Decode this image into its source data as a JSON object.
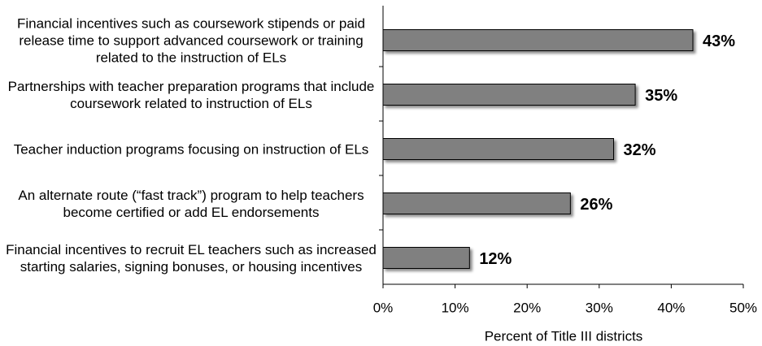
{
  "chart_data": {
    "type": "bar",
    "orientation": "horizontal",
    "categories": [
      "Financial incentives such as coursework stipends or paid release time to support advanced coursework or training related to the instruction of ELs",
      "Partnerships with teacher preparation programs that include coursework related to instruction of ELs",
      "Teacher induction programs focusing on instruction of ELs",
      "An alternate route (“fast track”) program to help teachers become certified or add EL endorsements",
      "Financial incentives to recruit EL teachers such as increased starting salaries, signing bonuses, or housing incentives"
    ],
    "values": [
      43,
      35,
      32,
      26,
      12
    ],
    "value_labels": [
      "43%",
      "35%",
      "32%",
      "26%",
      "12%"
    ],
    "color": "#808080",
    "xlabel": "Percent of Title III districts",
    "xlim": [
      0,
      50
    ],
    "xticks": [
      {
        "value": 0,
        "label": "0%"
      },
      {
        "value": 10,
        "label": "10%"
      },
      {
        "value": 20,
        "label": "20%"
      },
      {
        "value": 30,
        "label": "30%"
      },
      {
        "value": 40,
        "label": "40%"
      },
      {
        "value": 50,
        "label": "50%"
      }
    ],
    "grid": false
  }
}
